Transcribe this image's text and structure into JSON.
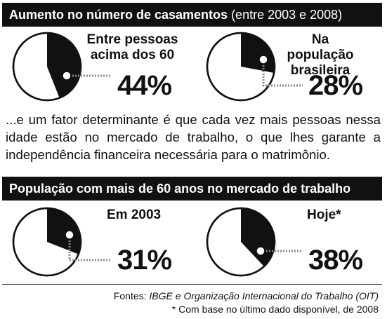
{
  "header_1": {
    "title": "Aumento no número de casamentos",
    "subtitle": "(entre 2003 e 2008)"
  },
  "header_2": {
    "title": "População com mais de 60 anos no mercado de trabalho"
  },
  "paragraph": "...e um fator determinante é que cada vez mais pessoas nessa idade estão no mercado de trabalho, o que lhes garante a independência financeira necessária para o matrimônio.",
  "sources": {
    "prefix": "Fontes: ",
    "names": "IBGE e Organização Internacional do Trabalho (OIT)",
    "footnote": "* Com base no último dado disponível, de 2008"
  },
  "colors": {
    "fill": "#111111",
    "background": "#ffffff"
  },
  "chart_data": [
    {
      "type": "pie",
      "label": "Entre pessoas acima dos 60",
      "value": 44,
      "value_label": "44%",
      "section": "Aumento no número de casamentos (entre 2003 e 2008)"
    },
    {
      "type": "pie",
      "label": "Na população brasileira",
      "value": 28,
      "value_label": "28%",
      "section": "Aumento no número de casamentos (entre 2003 e 2008)"
    },
    {
      "type": "pie",
      "label": "Em 2003",
      "value": 31,
      "value_label": "31%",
      "section": "População com mais de 60 anos no mercado de trabalho"
    },
    {
      "type": "pie",
      "label": "Hoje*",
      "value": 38,
      "value_label": "38%",
      "section": "População com mais de 60 anos no mercado de trabalho"
    }
  ]
}
